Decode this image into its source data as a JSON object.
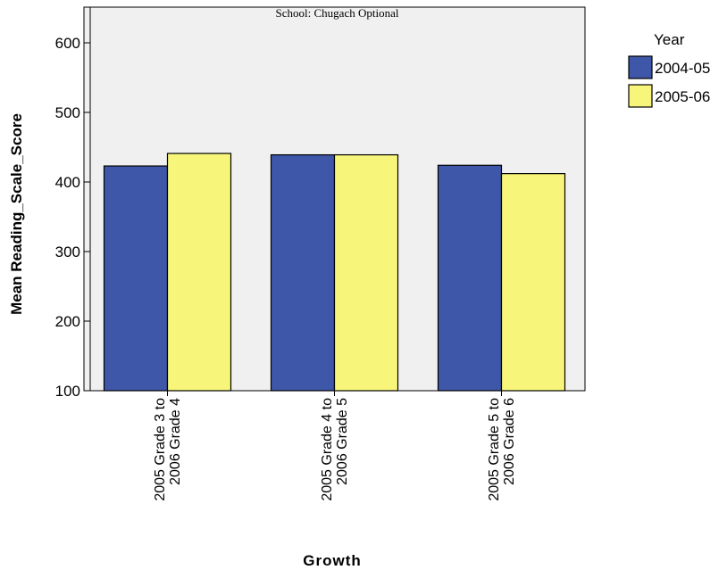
{
  "chart_data": {
    "type": "bar",
    "title": "",
    "subtitle": "School: Chugach Optional",
    "xlabel": "Growth",
    "ylabel": "Mean Reading_Scale_Score",
    "categories": [
      [
        "2005 Grade 3 to",
        "2006 Grade 4"
      ],
      [
        "2005 Grade 4 to",
        "2006 Grade 5"
      ],
      [
        "2005 Grade 5 to",
        "2006 Grade 6"
      ]
    ],
    "ylim": [
      100,
      600
    ],
    "yticks": [
      100,
      200,
      300,
      400,
      500,
      600
    ],
    "legend_title": "Year",
    "legend_position": "top-right",
    "grid": false,
    "series": [
      {
        "name": "2004-05",
        "color": "#3f57a8",
        "values": [
          423,
          439,
          424
        ]
      },
      {
        "name": "2005-06",
        "color": "#f8f67a",
        "values": [
          441,
          439,
          412
        ]
      }
    ],
    "plot_background": "#f0f0f0"
  }
}
